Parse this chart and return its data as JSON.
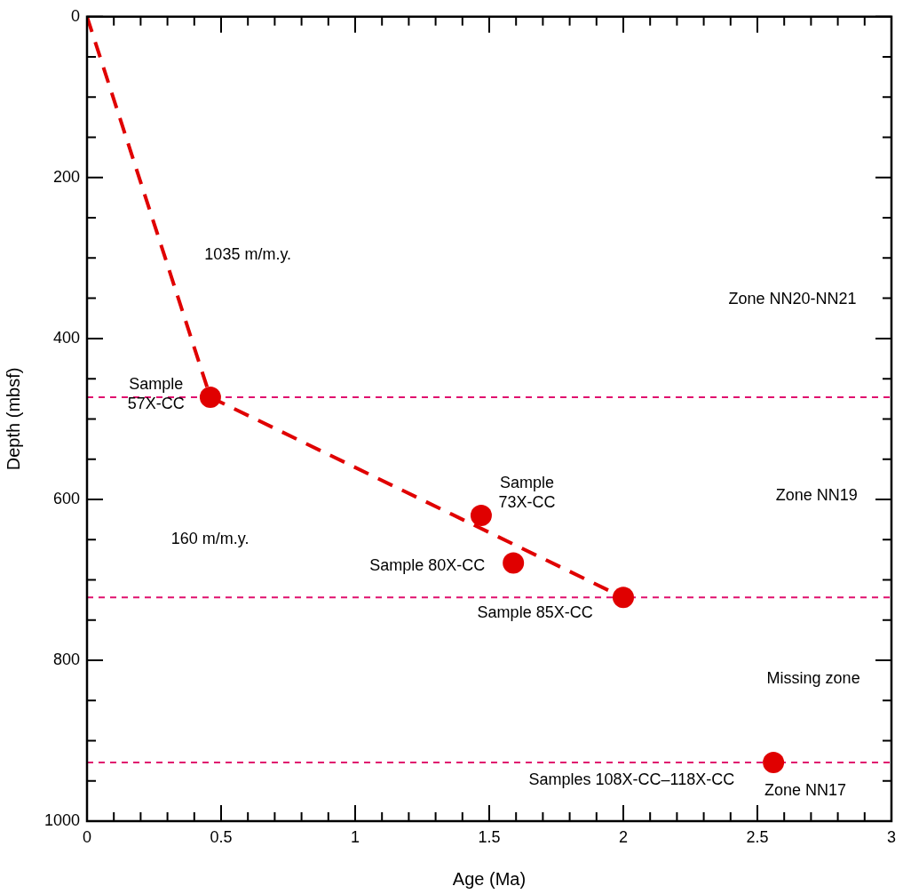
{
  "chart_data": {
    "type": "scatter",
    "xlabel": "Age (Ma)",
    "ylabel": "Depth (mbsf)",
    "xlim": [
      0,
      3
    ],
    "ylim": [
      1000,
      0
    ],
    "xticks": [
      0,
      {
        "value": 0.1,
        "label": null
      },
      {
        "value": 0.2,
        "label": null
      },
      {
        "value": 0.3,
        "label": null
      },
      {
        "value": 0.4,
        "label": null
      },
      0.5,
      {
        "value": 0.6,
        "label": null
      },
      {
        "value": 0.7,
        "label": null
      },
      {
        "value": 0.8,
        "label": null
      },
      {
        "value": 0.9,
        "label": null
      },
      1,
      {
        "value": 1.1,
        "label": null
      },
      {
        "value": 1.2,
        "label": null
      },
      {
        "value": 1.3,
        "label": null
      },
      {
        "value": 1.4,
        "label": null
      },
      1.5,
      {
        "value": 1.6,
        "label": null
      },
      {
        "value": 1.7,
        "label": null
      },
      {
        "value": 1.8,
        "label": null
      },
      {
        "value": 1.9,
        "label": null
      },
      2,
      {
        "value": 2.1,
        "label": null
      },
      {
        "value": 2.2,
        "label": null
      },
      {
        "value": 2.3,
        "label": null
      },
      {
        "value": 2.4,
        "label": null
      },
      2.5,
      {
        "value": 2.6,
        "label": null
      },
      {
        "value": 2.7,
        "label": null
      },
      {
        "value": 2.8,
        "label": null
      },
      {
        "value": 2.9,
        "label": null
      },
      3
    ],
    "yticks": [
      0,
      {
        "value": 50,
        "label": null
      },
      {
        "value": 100,
        "label": null
      },
      {
        "value": 150,
        "label": null
      },
      200,
      {
        "value": 250,
        "label": null
      },
      {
        "value": 300,
        "label": null
      },
      {
        "value": 350,
        "label": null
      },
      400,
      {
        "value": 450,
        "label": null
      },
      {
        "value": 500,
        "label": null
      },
      {
        "value": 550,
        "label": null
      },
      600,
      {
        "value": 650,
        "label": null
      },
      {
        "value": 700,
        "label": null
      },
      {
        "value": 750,
        "label": null
      },
      800,
      {
        "value": 850,
        "label": null
      },
      {
        "value": 900,
        "label": null
      },
      {
        "value": 950,
        "label": null
      },
      1000
    ],
    "series": [
      {
        "type": "line",
        "x": [
          0,
          0.46,
          2.0
        ],
        "values": [
          0,
          473,
          722
        ],
        "color": "#e00000",
        "line_style": "dashed",
        "marker": "none"
      },
      {
        "type": "scatter",
        "x": [
          0.46,
          1.47,
          1.59,
          2.0,
          2.56
        ],
        "values": [
          473,
          620,
          679,
          722,
          927
        ],
        "color": "#e00000",
        "marker": "circle"
      }
    ],
    "ref_lines": [
      {
        "axis": "y",
        "value": 473,
        "color": "#e0106e",
        "line_style": "dashed"
      },
      {
        "axis": "y",
        "value": 722,
        "color": "#e0106e",
        "line_style": "dashed"
      },
      {
        "axis": "y",
        "value": 927,
        "color": "#e0106e",
        "line_style": "dashed"
      }
    ],
    "annotations": [
      "Sample\n57X-CC",
      "1035 m/m.y.",
      "160 m/m.y.",
      "Sample\n73X-CC",
      "Sample 80X-CC",
      "Sample 85X-CC",
      "Zone NN20-NN21",
      "Zone NN19",
      "Missing zone",
      "Samples 108X-CC–118X-CC",
      "Zone NN17"
    ]
  }
}
